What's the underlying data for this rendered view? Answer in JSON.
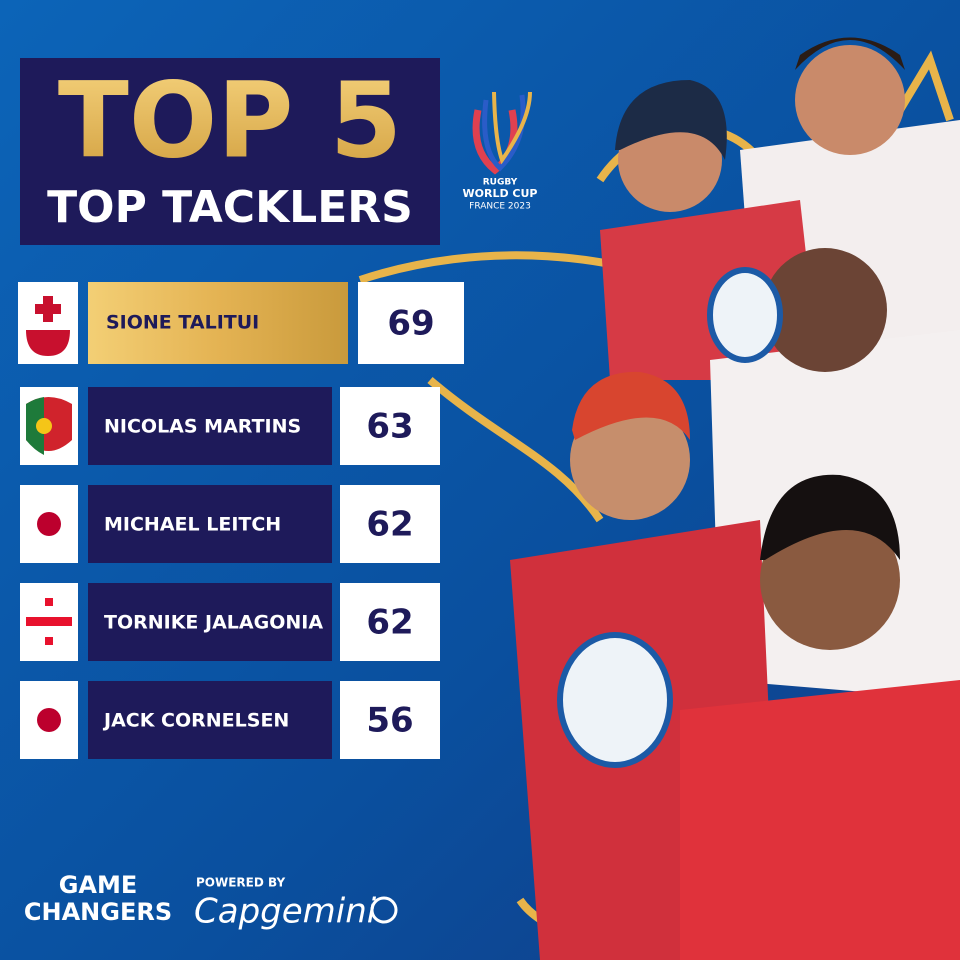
{
  "header": {
    "title": "TOP 5",
    "subtitle": "TOP TACKLERS"
  },
  "logo": {
    "line1": "RUGBY",
    "line2": "WORLD CUP",
    "line3": "FRANCE 2023"
  },
  "rows": [
    {
      "name": "SIONE TALITUI",
      "value": 69
    },
    {
      "name": "NICOLAS MARTINS",
      "value": 63
    },
    {
      "name": "MICHAEL LEITCH",
      "value": 62
    },
    {
      "name": "TORNIKE JALAGONIA",
      "value": 62
    },
    {
      "name": "JACK CORNELSEN",
      "value": 56
    }
  ],
  "footer": {
    "brand_line1": "GAME",
    "brand_line2": "CHANGERS",
    "powered": "POWERED BY",
    "sponsor": "Capgemini"
  }
}
